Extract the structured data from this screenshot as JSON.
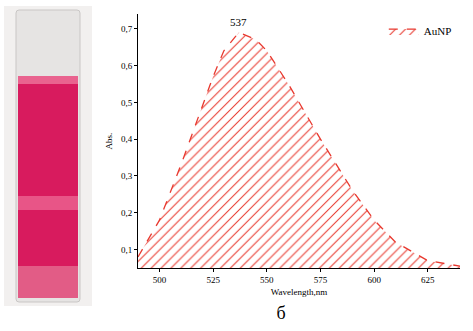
{
  "chart_data": {
    "type": "area",
    "x_label": "Wavelength,nm",
    "y_label": "Abs.",
    "caption": "б",
    "series": [
      {
        "name": "AuNP",
        "color": "#e8392f",
        "line_style": "dashed",
        "marker": "hatched",
        "x": [
          490,
          500,
          510,
          520,
          525,
          530,
          537,
          545,
          550,
          560,
          575,
          590,
          600,
          610,
          625,
          640
        ],
        "values": [
          0.08,
          0.18,
          0.33,
          0.49,
          0.57,
          0.64,
          0.69,
          0.67,
          0.64,
          0.55,
          0.4,
          0.26,
          0.18,
          0.12,
          0.07,
          0.055
        ]
      }
    ],
    "annotations": [
      {
        "x": 537,
        "y": 0.69,
        "text": "537"
      }
    ],
    "xlim": [
      490,
      640
    ],
    "xticks": [
      500,
      525,
      550,
      575,
      600,
      625
    ],
    "ylim": [
      0.05,
      0.74
    ],
    "yticks": [
      {
        "value": 0.1,
        "label": "0,1"
      },
      {
        "value": 0.2,
        "label": "0,2"
      },
      {
        "value": 0.3,
        "label": "0,3"
      },
      {
        "value": 0.4,
        "label": "0,4"
      },
      {
        "value": 0.5,
        "label": "0,5"
      },
      {
        "value": 0.6,
        "label": "0,6"
      },
      {
        "value": 0.7,
        "label": "0,7"
      }
    ],
    "grid": false,
    "legend": "top-right"
  }
}
